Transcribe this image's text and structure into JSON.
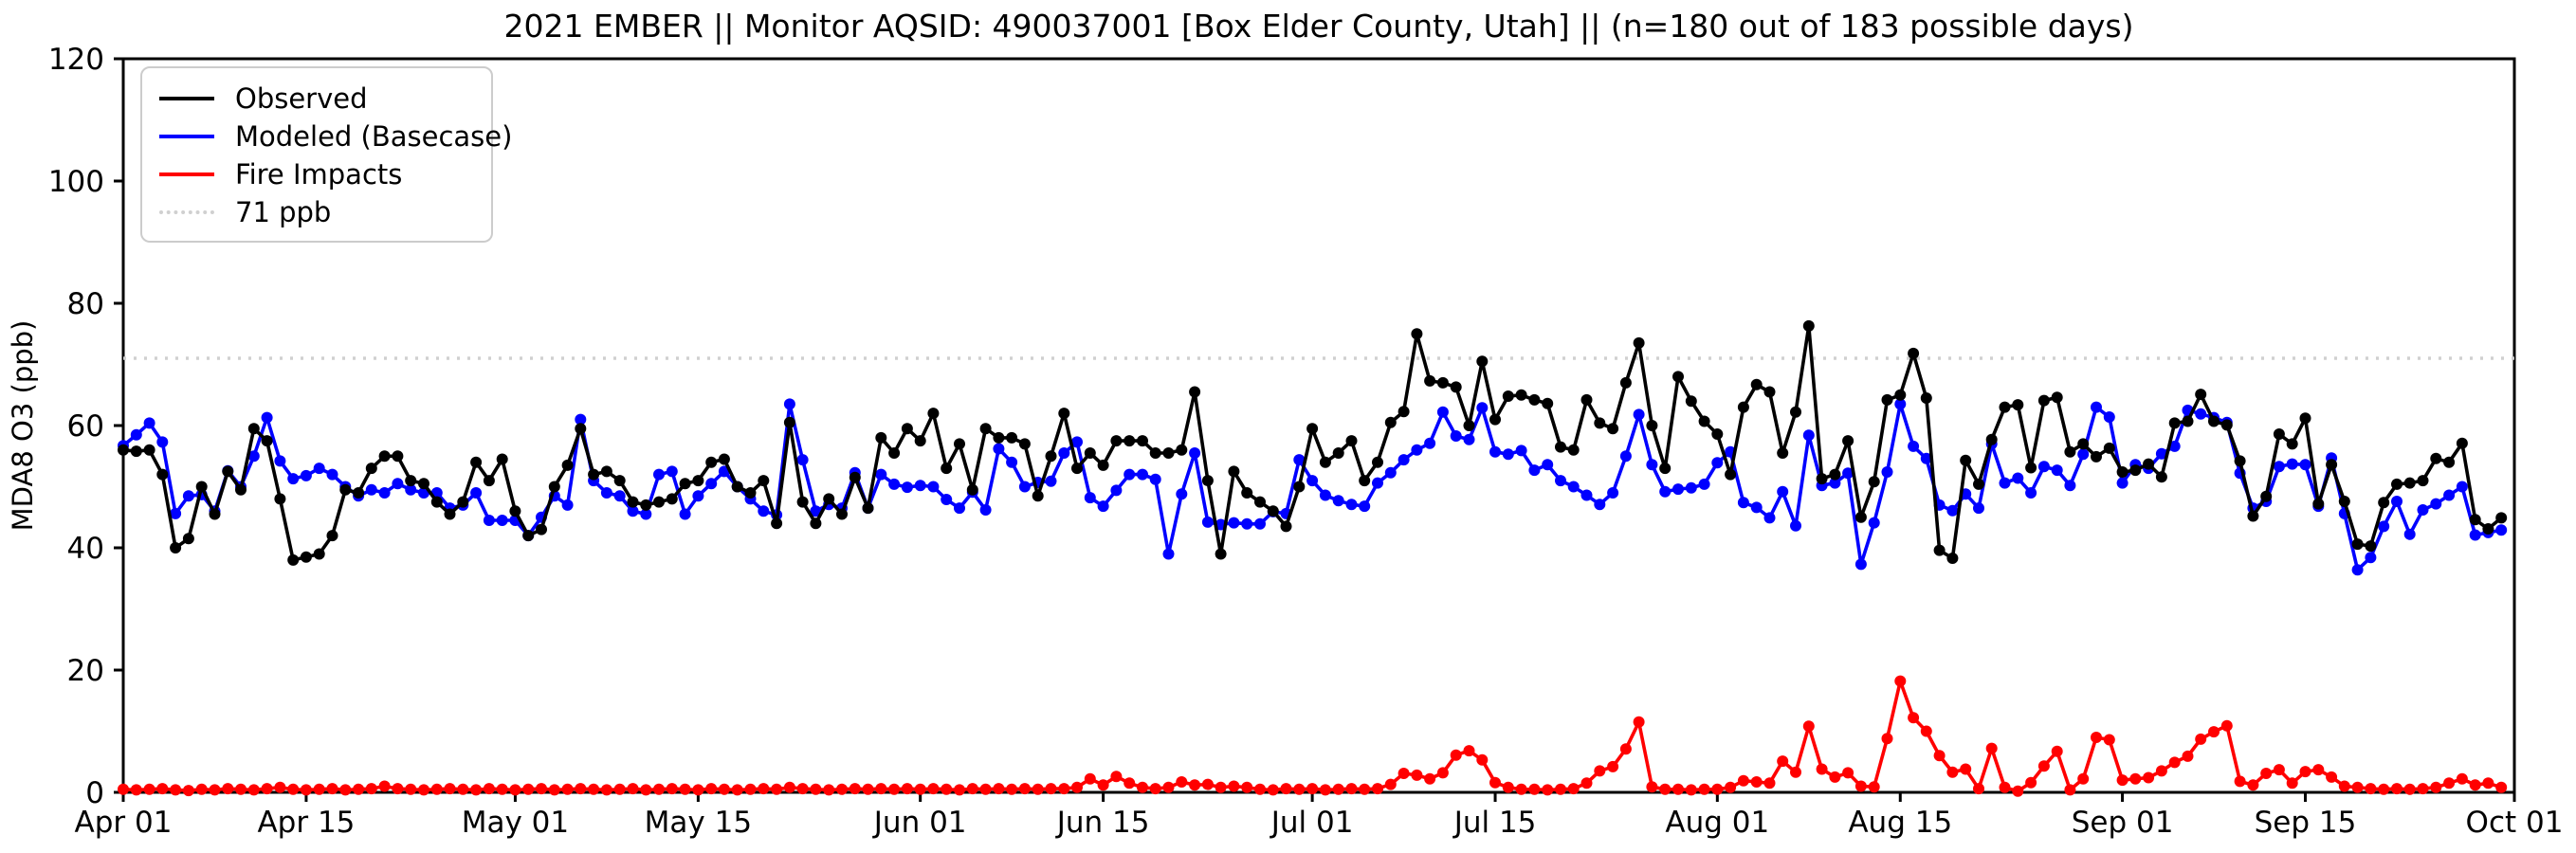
{
  "chart_data": {
    "type": "line",
    "title": "2021 EMBER || Monitor AQSID: 490037001 [Box Elder County, Utah] || (n=180 out of 183 possible days)",
    "xlabel": "",
    "ylabel": "MDA8 O3 (ppb)",
    "ylim": [
      0,
      120
    ],
    "yticks": [
      0,
      20,
      40,
      60,
      80,
      100,
      120
    ],
    "x_tick_labels": [
      "Apr 01",
      "Apr 15",
      "May 01",
      "May 15",
      "Jun 01",
      "Jun 15",
      "Jul 01",
      "Jul 15",
      "Aug 01",
      "Aug 15",
      "Sep 01",
      "Sep 15",
      "Oct 01"
    ],
    "x_tick_days": [
      0,
      14,
      30,
      44,
      61,
      75,
      91,
      105,
      122,
      136,
      153,
      167,
      183
    ],
    "x_start_label": "Apr 01",
    "x_end_label": "Oct 01",
    "n_days": 183,
    "grid": false,
    "legend_position": "upper left",
    "threshold": {
      "label": "71 ppb",
      "value": 71,
      "color": "#d0d0d0",
      "style": "dotted"
    },
    "legend": [
      {
        "label": "Observed",
        "color": "#000000",
        "style": "solid"
      },
      {
        "label": "Modeled (Basecase)",
        "color": "#0000ff",
        "style": "solid"
      },
      {
        "label": "Fire Impacts",
        "color": "#ff0000",
        "style": "solid"
      },
      {
        "label": "71 ppb",
        "color": "#d0d0d0",
        "style": "dotted"
      }
    ],
    "series": [
      {
        "name": "Observed",
        "color": "#000000",
        "values": [
          56,
          55.8,
          56,
          52,
          40,
          41.5,
          50,
          45.5,
          52.5,
          49.5,
          59.5,
          57.5,
          48,
          38,
          38.5,
          39,
          42,
          49.5,
          49,
          53,
          55,
          55,
          51,
          50.5,
          47.5,
          45.5,
          47.5,
          54,
          51,
          54.5,
          46,
          42,
          43,
          50,
          53.5,
          59.5,
          52,
          52.5,
          51,
          47.5,
          47,
          47.5,
          48,
          50.5,
          51,
          54,
          54.5,
          50,
          49,
          51,
          44,
          60.5,
          47.5,
          44,
          48,
          45.5,
          51.5,
          46.5,
          58,
          55.5,
          59.5,
          57.5,
          62,
          53,
          57,
          49.5,
          59.5,
          58,
          58,
          57,
          48.5,
          55,
          62,
          53,
          55.5,
          53.5,
          57.5,
          57.5,
          57.5,
          55.5,
          55.5,
          56,
          65.5,
          51,
          39,
          52.5,
          49,
          47.5,
          46,
          43.5,
          50,
          59.5,
          54,
          55.5,
          57.5,
          51,
          54,
          60.5,
          62.3,
          75,
          67.3,
          67,
          66.3,
          60,
          70.5,
          61,
          64.8,
          65,
          64.2,
          63.6,
          56.5,
          56,
          64.2,
          60.4,
          59.5,
          67,
          73.5,
          60,
          53,
          68,
          64,
          60.7,
          58.6,
          52,
          63,
          66.7,
          65.5,
          55.5,
          62.2,
          76.3,
          51.3,
          52,
          57.5,
          45,
          50.8,
          64.2,
          65,
          71.8,
          64.5,
          39.6,
          38.3,
          54.3,
          50.4,
          57.7,
          63,
          63.4,
          53.1,
          64.1,
          64.6,
          55.7,
          57,
          54.9,
          56.3,
          52.4,
          52.7,
          53.7,
          51.6,
          60.4,
          60.7,
          65.1,
          60.7,
          60.1,
          54.2,
          45.2,
          48.4,
          58.6,
          57,
          61.2,
          47.2,
          53.6,
          47.6,
          40.6,
          40.3,
          47.4,
          50.4,
          50.6,
          51,
          54.6,
          54,
          57.1,
          44.6,
          43.1,
          44.9
        ]
      },
      {
        "name": "Modeled (Basecase)",
        "color": "#0000ff",
        "values": [
          56.7,
          58.5,
          60.4,
          57.3,
          45.6,
          48.5,
          48.7,
          46,
          52.6,
          50,
          55,
          61.3,
          54.2,
          51.3,
          51.8,
          53,
          52,
          50,
          48.5,
          49.5,
          49,
          50.5,
          49.5,
          49,
          49,
          46.5,
          47,
          49,
          44.5,
          44.5,
          44.5,
          42,
          45,
          48.5,
          47,
          61,
          51,
          49,
          48.5,
          46,
          45.5,
          52,
          52.5,
          45.5,
          48.5,
          50.5,
          52.5,
          50,
          48,
          46,
          45.4,
          63.5,
          54.4,
          46,
          47.1,
          46.5,
          52.3,
          46.5,
          52,
          50.4,
          49.9,
          50.2,
          50,
          47.9,
          46.5,
          49.1,
          46.2,
          56.2,
          54,
          50,
          50.7,
          50.9,
          55.5,
          57.3,
          48.2,
          46.8,
          49.4,
          52,
          52,
          51.2,
          39,
          48.8,
          55.5,
          44.2,
          43.8,
          44.1,
          43.9,
          43.9,
          45.9,
          45.6,
          54.4,
          51,
          48.6,
          47.7,
          47.1,
          46.8,
          50.6,
          52.3,
          54.4,
          56,
          57.1,
          62.2,
          58.3,
          57.7,
          62.9,
          55.7,
          55.3,
          55.9,
          52.7,
          53.6,
          51,
          50,
          48.6,
          47.1,
          49,
          55,
          61.8,
          53.6,
          49.2,
          49.6,
          49.8,
          50.4,
          53.9,
          55.7,
          47.4,
          46.6,
          44.9,
          49.2,
          43.6,
          58.4,
          50.2,
          50.6,
          52.2,
          37.3,
          44.1,
          52.4,
          63.5,
          56.6,
          54.6,
          47,
          46.1,
          48.8,
          46.5,
          57,
          50.6,
          51.4,
          49,
          53.3,
          52.7,
          50.2,
          55.3,
          63,
          61.4,
          50.6,
          53.6,
          53,
          55.4,
          56.6,
          62.5,
          61.9,
          61.3,
          60.5,
          52.2,
          46.5,
          47.6,
          53.3,
          53.7,
          53.6,
          46.8,
          54.7,
          45.6,
          36.4,
          38.4,
          43.5,
          47.6,
          42.2,
          46.2,
          47.2,
          48.6,
          50,
          42.1,
          42.5,
          42.9
        ]
      },
      {
        "name": "Fire Impacts",
        "color": "#ff0000",
        "values": [
          0.5,
          0.4,
          0.5,
          0.6,
          0.4,
          0.3,
          0.5,
          0.4,
          0.6,
          0.5,
          0.4,
          0.6,
          0.8,
          0.5,
          0.4,
          0.5,
          0.6,
          0.4,
          0.5,
          0.6,
          1.0,
          0.6,
          0.5,
          0.4,
          0.5,
          0.6,
          0.5,
          0.4,
          0.6,
          0.5,
          0.4,
          0.5,
          0.6,
          0.4,
          0.5,
          0.6,
          0.5,
          0.4,
          0.5,
          0.6,
          0.4,
          0.5,
          0.6,
          0.5,
          0.4,
          0.6,
          0.5,
          0.4,
          0.5,
          0.6,
          0.5,
          0.8,
          0.6,
          0.5,
          0.4,
          0.5,
          0.6,
          0.5,
          0.6,
          0.5,
          0.6,
          0.5,
          0.6,
          0.5,
          0.4,
          0.6,
          0.5,
          0.6,
          0.5,
          0.6,
          0.5,
          0.6,
          0.6,
          0.8,
          2.2,
          1.2,
          2.6,
          1.5,
          0.8,
          0.6,
          0.8,
          1.7,
          1.2,
          1.3,
          0.8,
          1.0,
          0.8,
          0.5,
          0.4,
          0.6,
          0.5,
          0.6,
          0.4,
          0.5,
          0.6,
          0.5,
          0.6,
          1.3,
          3.1,
          2.8,
          2.2,
          3.2,
          6.1,
          6.8,
          5.3,
          1.6,
          0.8,
          0.5,
          0.5,
          0.4,
          0.5,
          0.6,
          1.5,
          3.5,
          4.2,
          7.1,
          11.5,
          0.9,
          0.5,
          0.5,
          0.4,
          0.5,
          0.5,
          0.8,
          1.9,
          1.7,
          1.5,
          5.1,
          3.3,
          10.8,
          3.8,
          2.5,
          3.2,
          1.0,
          0.9,
          8.8,
          18.2,
          12.2,
          10.0,
          6.0,
          3.3,
          3.8,
          0.6,
          7.2,
          0.8,
          0.2,
          1.6,
          4.3,
          6.7,
          0.4,
          2.2,
          9.0,
          8.6,
          2.0,
          2.2,
          2.4,
          3.5,
          4.9,
          5.9,
          8.7,
          9.9,
          10.9,
          1.8,
          1.2,
          3.1,
          3.7,
          1.5,
          3.4,
          3.7,
          2.5,
          1.0,
          0.8,
          0.6,
          0.5,
          0.6,
          0.5,
          0.6,
          0.8,
          1.5,
          2.2,
          1.2,
          1.5,
          0.8
        ]
      }
    ]
  }
}
